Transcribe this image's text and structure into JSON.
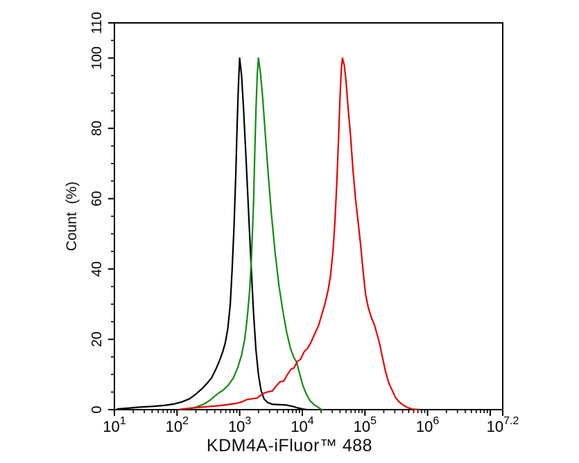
{
  "figure": {
    "background": "#ffffff",
    "axis_color": "#000000"
  },
  "chart_data": {
    "type": "line",
    "subtype": "flow-cytometry-overlay-histogram",
    "title": "",
    "xlabel": "KDM4A-iFluor™ 488",
    "ylabel": "Count  (%)",
    "x_scale": "log10",
    "x_range_log": [
      1,
      7.2
    ],
    "y_range": [
      0,
      110
    ],
    "grid": false,
    "legend": "none",
    "axis_color": "#000000",
    "x_major_ticks": [
      {
        "log": 1,
        "base": "10",
        "exp": "1"
      },
      {
        "log": 2,
        "base": "10",
        "exp": "2"
      },
      {
        "log": 3,
        "base": "10",
        "exp": "3"
      },
      {
        "log": 4,
        "base": "10",
        "exp": "4"
      },
      {
        "log": 5,
        "base": "10",
        "exp": "5"
      },
      {
        "log": 6,
        "base": "10",
        "exp": "6"
      },
      {
        "log": 7.2,
        "base": "10",
        "exp": "7.2"
      }
    ],
    "x_unlabeled_majors": [
      7
    ],
    "y_major_ticks": [
      0,
      20,
      40,
      60,
      80,
      100,
      110
    ],
    "y_minor_step": 5,
    "series": [
      {
        "id": "black-control",
        "color_name": "black",
        "color": "#000000",
        "peak_x_log": 3.0,
        "peak_y_pct": 100,
        "points": [
          [
            1.05,
            0.2
          ],
          [
            1.2,
            0.4
          ],
          [
            1.4,
            0.7
          ],
          [
            1.6,
            0.9
          ],
          [
            1.8,
            1.2
          ],
          [
            1.95,
            1.6
          ],
          [
            2.08,
            2.2
          ],
          [
            2.2,
            3.1
          ],
          [
            2.3,
            4.4
          ],
          [
            2.4,
            6
          ],
          [
            2.48,
            7.5
          ],
          [
            2.55,
            9
          ],
          [
            2.62,
            11.5
          ],
          [
            2.68,
            14
          ],
          [
            2.73,
            16.5
          ],
          [
            2.77,
            19
          ],
          [
            2.81,
            23
          ],
          [
            2.85,
            30
          ],
          [
            2.88,
            40
          ],
          [
            2.91,
            52
          ],
          [
            2.94,
            68
          ],
          [
            2.96,
            81
          ],
          [
            2.98,
            92
          ],
          [
            3.0,
            100
          ],
          [
            3.03,
            95
          ],
          [
            3.06,
            86
          ],
          [
            3.1,
            72
          ],
          [
            3.14,
            57
          ],
          [
            3.18,
            42
          ],
          [
            3.22,
            28
          ],
          [
            3.26,
            17
          ],
          [
            3.3,
            10
          ],
          [
            3.34,
            5.5
          ],
          [
            3.39,
            3
          ],
          [
            3.45,
            2
          ],
          [
            3.53,
            1.5
          ],
          [
            3.65,
            1.4
          ],
          [
            3.75,
            1.3
          ],
          [
            3.85,
            0.9
          ],
          [
            3.93,
            0.5
          ],
          [
            4.0,
            0.2
          ],
          [
            4.07,
            0
          ]
        ]
      },
      {
        "id": "green-secondary",
        "color_name": "green",
        "color": "#0e8c0e",
        "peak_x_log": 3.3,
        "peak_y_pct": 100,
        "points": [
          [
            2.18,
            0.2
          ],
          [
            2.3,
            0.7
          ],
          [
            2.42,
            1.5
          ],
          [
            2.52,
            2.6
          ],
          [
            2.6,
            3.8
          ],
          [
            2.67,
            4.8
          ],
          [
            2.74,
            5.6
          ],
          [
            2.82,
            7
          ],
          [
            2.9,
            9
          ],
          [
            2.97,
            12
          ],
          [
            3.03,
            15.5
          ],
          [
            3.08,
            20
          ],
          [
            3.12,
            26
          ],
          [
            3.16,
            34
          ],
          [
            3.19,
            44
          ],
          [
            3.22,
            58
          ],
          [
            3.24,
            72
          ],
          [
            3.26,
            85
          ],
          [
            3.28,
            95
          ],
          [
            3.3,
            100
          ],
          [
            3.33,
            96
          ],
          [
            3.37,
            88
          ],
          [
            3.41,
            78
          ],
          [
            3.46,
            66
          ],
          [
            3.51,
            55
          ],
          [
            3.57,
            44
          ],
          [
            3.63,
            35
          ],
          [
            3.69,
            28
          ],
          [
            3.75,
            22
          ],
          [
            3.81,
            17.5
          ],
          [
            3.86,
            15
          ],
          [
            3.91,
            13.5
          ],
          [
            3.96,
            10
          ],
          [
            4.01,
            6.8
          ],
          [
            4.06,
            4.6
          ],
          [
            4.12,
            2.6
          ],
          [
            4.19,
            1.4
          ],
          [
            4.26,
            0.6
          ],
          [
            4.31,
            0
          ]
        ]
      },
      {
        "id": "red-kdm4a",
        "color_name": "red",
        "color": "#e60000",
        "peak_x_log": 4.64,
        "peak_y_pct": 100,
        "points": [
          [
            2.05,
            0.1
          ],
          [
            2.2,
            0.4
          ],
          [
            2.4,
            0.7
          ],
          [
            2.6,
            1.0
          ],
          [
            2.8,
            1.4
          ],
          [
            2.95,
            1.8
          ],
          [
            3.05,
            2.3
          ],
          [
            3.12,
            2.9
          ],
          [
            3.2,
            3.1
          ],
          [
            3.28,
            3.3
          ],
          [
            3.36,
            4.5
          ],
          [
            3.44,
            5.0
          ],
          [
            3.52,
            5.3
          ],
          [
            3.58,
            6.6
          ],
          [
            3.64,
            7.9
          ],
          [
            3.7,
            8.1
          ],
          [
            3.76,
            9.9
          ],
          [
            3.82,
            11.5
          ],
          [
            3.87,
            11.9
          ],
          [
            3.92,
            13.7
          ],
          [
            3.97,
            14.3
          ],
          [
            4.03,
            16.5
          ],
          [
            4.08,
            17.3
          ],
          [
            4.14,
            19.2
          ],
          [
            4.2,
            21.6
          ],
          [
            4.26,
            24
          ],
          [
            4.31,
            27
          ],
          [
            4.36,
            30
          ],
          [
            4.41,
            33.8
          ],
          [
            4.45,
            38
          ],
          [
            4.49,
            45
          ],
          [
            4.52,
            53
          ],
          [
            4.55,
            64
          ],
          [
            4.58,
            78
          ],
          [
            4.6,
            88
          ],
          [
            4.62,
            96
          ],
          [
            4.64,
            100
          ],
          [
            4.67,
            98
          ],
          [
            4.7,
            93
          ],
          [
            4.73,
            86
          ],
          [
            4.77,
            78
          ],
          [
            4.81,
            68
          ],
          [
            4.85,
            60
          ],
          [
            4.89,
            53.5
          ],
          [
            4.93,
            47
          ],
          [
            4.97,
            39.5
          ],
          [
            5.01,
            32.8
          ],
          [
            5.05,
            29.3
          ],
          [
            5.1,
            26.3
          ],
          [
            5.15,
            24.2
          ],
          [
            5.2,
            21
          ],
          [
            5.24,
            18.3
          ],
          [
            5.28,
            14.8
          ],
          [
            5.33,
            10.7
          ],
          [
            5.38,
            7.6
          ],
          [
            5.44,
            5.3
          ],
          [
            5.49,
            3.4
          ],
          [
            5.55,
            2.1
          ],
          [
            5.61,
            1.3
          ],
          [
            5.68,
            0.6
          ],
          [
            5.77,
            0.1
          ],
          [
            5.85,
            0
          ]
        ]
      }
    ]
  }
}
